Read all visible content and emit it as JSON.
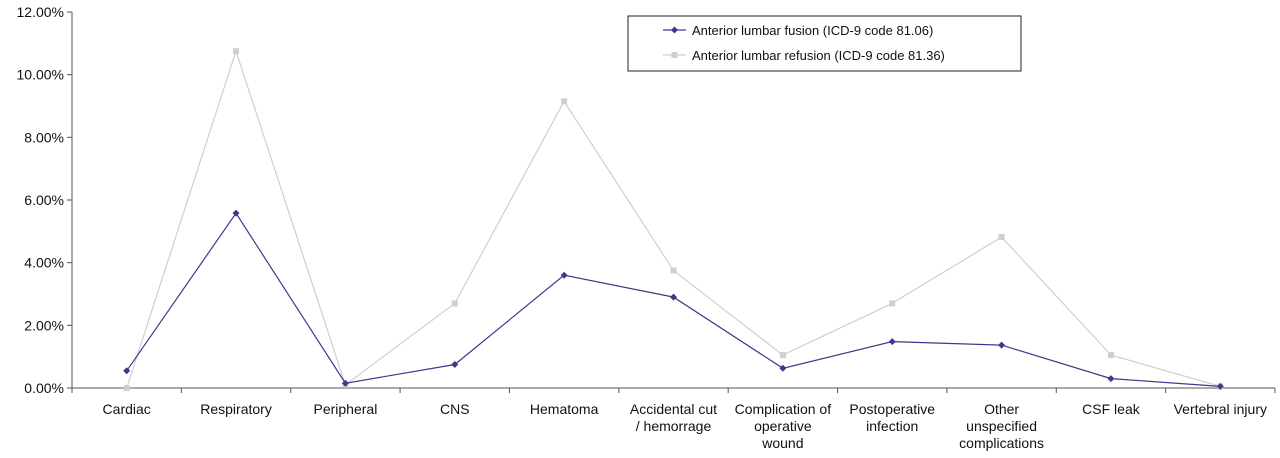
{
  "chart_data": {
    "type": "line",
    "categories": [
      "Cardiac",
      "Respiratory",
      "Peripheral",
      "CNS",
      "Hematoma",
      "Accidental cut / hemorrage",
      "Complication of operative wound",
      "Postoperative infection",
      "Other unspecified complications",
      "CSF leak",
      "Vertebral injury"
    ],
    "category_lines": [
      [
        "Cardiac"
      ],
      [
        "Respiratory"
      ],
      [
        "Peripheral"
      ],
      [
        "CNS"
      ],
      [
        "Hematoma"
      ],
      [
        "Accidental cut",
        "/ hemorrage"
      ],
      [
        "Complication of",
        "operative",
        "wound"
      ],
      [
        "Postoperative",
        "infection"
      ],
      [
        "Other",
        "unspecified",
        "complications"
      ],
      [
        "CSF leak"
      ],
      [
        "Vertebral injury"
      ]
    ],
    "series": [
      {
        "name": "Anterior lumbar fusion (ICD-9 code 81.06)",
        "color": "#3a3a8c",
        "marker": "diamond",
        "values": [
          0.55,
          5.58,
          0.15,
          0.75,
          3.6,
          2.9,
          0.63,
          1.48,
          1.37,
          0.3,
          0.05
        ]
      },
      {
        "name": "Anterior lumbar refusion (ICD-9 code 81.36)",
        "color": "#cfcfcf",
        "marker": "square",
        "values": [
          0.0,
          10.75,
          0.1,
          2.7,
          9.15,
          3.75,
          1.05,
          2.7,
          4.82,
          1.05,
          0.05
        ]
      }
    ],
    "y_ticks": [
      "0.00%",
      "2.00%",
      "4.00%",
      "6.00%",
      "8.00%",
      "10.00%",
      "12.00%"
    ],
    "ylim": [
      0,
      12
    ],
    "title": "",
    "xlabel": "",
    "ylabel": "",
    "grid": false,
    "legend_position": "top-right"
  }
}
